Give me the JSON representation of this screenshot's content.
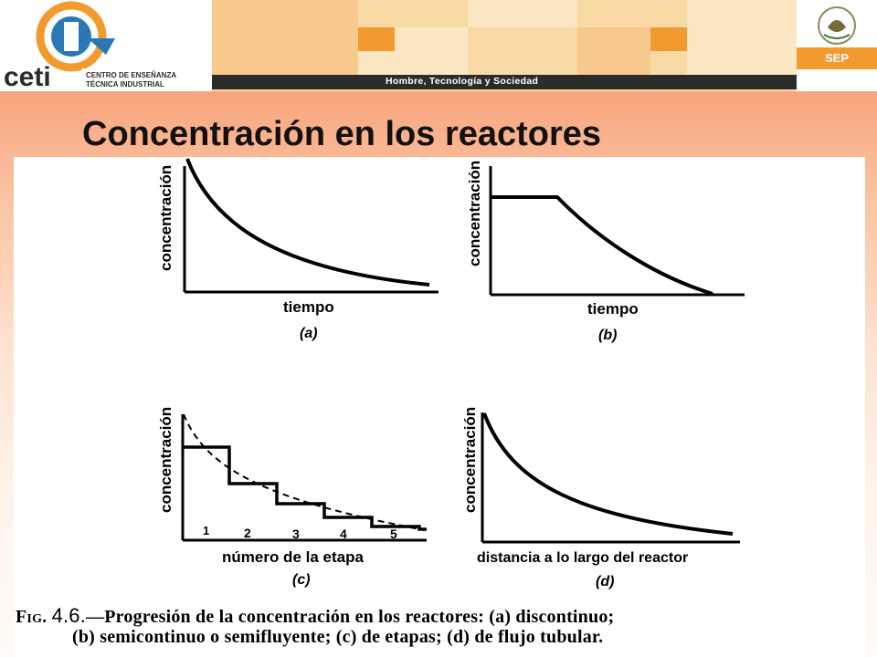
{
  "header": {
    "logo_text": "ceti",
    "logo_subtitle_1": "CENTRO DE ENSEÑANZA",
    "logo_subtitle_2": "TÉCNICA INDUSTRIAL",
    "banner_text": "Hombre, Tecnología y Sociedad",
    "sep_label": "SEP",
    "colors": {
      "orange": "#f39a2e",
      "banner": "#f9d9a4",
      "blue": "#2a77b8"
    }
  },
  "slide": {
    "title": "Concentración en los reactores"
  },
  "figure": {
    "panels": [
      {
        "id": "a",
        "ylabel": "concentración",
        "xlabel": "tiempo",
        "tag": "(a)"
      },
      {
        "id": "b",
        "ylabel": "concentración",
        "xlabel": "tiempo",
        "tag": "(b)"
      },
      {
        "id": "c",
        "ylabel": "concentración",
        "xlabel": "número de la etapa",
        "tag": "(c)",
        "stages": [
          "1",
          "2",
          "3",
          "4",
          "5"
        ]
      },
      {
        "id": "d",
        "ylabel": "concentración",
        "xlabel": "distancia a lo largo del reactor",
        "tag": "(d)"
      }
    ],
    "caption": {
      "fig": "Fig.",
      "num": "4.6.",
      "line1": "—Progresión de la concentración en los reactores: (a) discontinuo;",
      "line2": "(b) semicontinuo o semifluyente; (c) de etapas; (d) de flujo tubular."
    }
  }
}
